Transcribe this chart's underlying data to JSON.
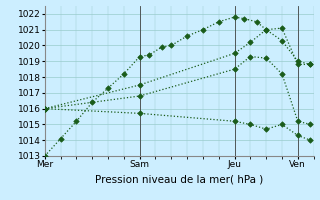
{
  "xlabel": "Pression niveau de la mer( hPa )",
  "ylim": [
    1013,
    1022.5
  ],
  "yticks": [
    1013,
    1014,
    1015,
    1016,
    1017,
    1018,
    1019,
    1020,
    1021,
    1022
  ],
  "xtick_labels": [
    "Mer",
    "Sam",
    "Jeu",
    "Ven"
  ],
  "xtick_positions": [
    0,
    3,
    6,
    8
  ],
  "xlim": [
    0,
    8.5
  ],
  "bg_color": "#cceeff",
  "grid_color": "#99cccc",
  "line_color": "#1a5c1a",
  "series": [
    {
      "x": [
        0,
        0.5,
        1.0,
        1.5,
        2.0,
        2.5,
        3.0,
        3.3,
        3.7,
        4.0,
        4.5,
        5.0,
        5.5,
        6.0,
        6.3,
        6.7,
        7.0,
        7.5,
        8.0,
        8.4
      ],
      "y": [
        1013.0,
        1014.1,
        1015.2,
        1016.4,
        1017.3,
        1018.2,
        1019.3,
        1019.4,
        1019.9,
        1020.0,
        1020.6,
        1021.0,
        1021.5,
        1021.8,
        1021.7,
        1021.5,
        1021.0,
        1021.1,
        1018.8,
        1018.8
      ]
    },
    {
      "x": [
        0,
        3.0,
        6.0,
        6.5,
        7.0,
        7.5,
        8.0,
        8.4
      ],
      "y": [
        1016.0,
        1017.5,
        1019.5,
        1020.2,
        1021.0,
        1020.3,
        1019.0,
        1018.8
      ]
    },
    {
      "x": [
        0,
        3.0,
        6.0,
        6.5,
        7.0,
        7.5,
        8.0,
        8.4
      ],
      "y": [
        1016.0,
        1016.8,
        1018.5,
        1019.3,
        1019.2,
        1018.2,
        1015.2,
        1015.0
      ]
    },
    {
      "x": [
        0,
        3.0,
        6.0,
        6.5,
        7.0,
        7.5,
        8.0,
        8.4
      ],
      "y": [
        1016.0,
        1015.7,
        1015.2,
        1015.0,
        1014.7,
        1015.0,
        1014.3,
        1014.0
      ]
    }
  ],
  "vlines": [
    0,
    3,
    6,
    8
  ],
  "marker": "D",
  "markersize": 2.8,
  "linewidth": 0.9
}
